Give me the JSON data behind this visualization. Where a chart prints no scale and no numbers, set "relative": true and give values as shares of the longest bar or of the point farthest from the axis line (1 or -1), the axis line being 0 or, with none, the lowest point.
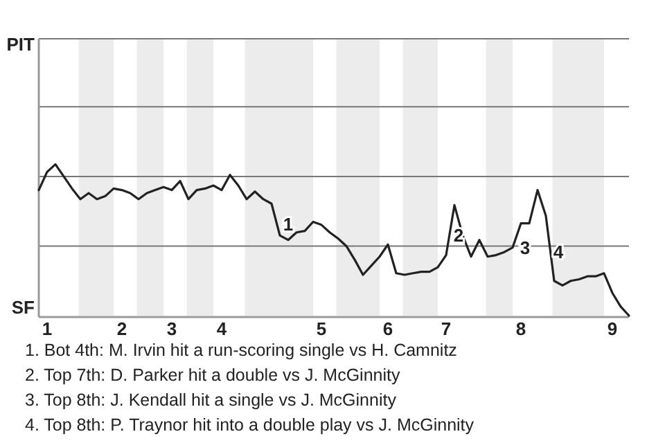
{
  "chart_data": {
    "type": "line",
    "relative": true,
    "marker": "none",
    "line_style": "solid",
    "categories": [
      null,
      "1",
      null,
      null,
      null,
      null,
      null,
      null,
      null,
      null,
      "2",
      null,
      null,
      null,
      null,
      null,
      "3",
      null,
      null,
      null,
      null,
      null,
      "4",
      null,
      null,
      null,
      null,
      null,
      null,
      null,
      null,
      null,
      null,
      null,
      "5",
      null,
      null,
      null,
      null,
      null,
      null,
      null,
      "6",
      null,
      null,
      null,
      null,
      null,
      null,
      "7",
      null,
      null,
      null,
      null,
      null,
      null,
      null,
      null,
      "8",
      null,
      null,
      null,
      null,
      null,
      null,
      null,
      null,
      null,
      null,
      "9",
      null,
      null
    ],
    "series": [
      {
        "color": "#222222",
        "values": [
          0.83,
          0.95,
          1,
          0.92,
          0.84,
          0.77,
          0.81,
          0.77,
          0.79,
          0.84,
          0.83,
          0.81,
          0.77,
          0.81,
          0.83,
          0.85,
          0.83,
          0.89,
          0.77,
          0.83,
          0.84,
          0.86,
          0.83,
          0.93,
          0.86,
          0.77,
          0.82,
          0.77,
          0.74,
          0.53,
          0.5,
          0.55,
          0.56,
          0.62,
          0.6,
          0.55,
          0.51,
          0.46,
          0.37,
          0.27,
          0.33,
          0.39,
          0.47,
          0.28,
          0.27,
          0.28,
          0.29,
          0.29,
          0.32,
          0.4,
          0.73,
          0.53,
          0.39,
          0.5,
          0.39,
          0.4,
          0.42,
          0.45,
          0.61,
          0.61,
          0.83,
          0.66,
          0.23,
          0.2,
          0.23,
          0.24,
          0.26,
          0.26,
          0.28,
          0.15,
          0.06,
          0
        ]
      }
    ],
    "ref_lines": [
      {
        "axis": "y",
        "value": 0.46,
        "color": "#777777"
      },
      {
        "axis": "y",
        "value": 0.92,
        "color": "#777777"
      },
      {
        "axis": "y",
        "value": 1.38,
        "color": "#777777"
      },
      {
        "axis": "y",
        "value": 1.83,
        "color": "#777777"
      }
    ],
    "annotations": [
      "PIT",
      "SF",
      "1. Bot 4th: M. Irvin hit a run-scoring single vs H. Camnitz",
      "2. Top 7th: D. Parker hit a double vs J. McGinnity",
      "3. Top 8th: J. Kendall hit a single vs J. McGinnity",
      "4. Top 8th: P. Traynor hit into a double play vs J. McGinnity",
      "1",
      "2",
      "3",
      "4"
    ]
  }
}
